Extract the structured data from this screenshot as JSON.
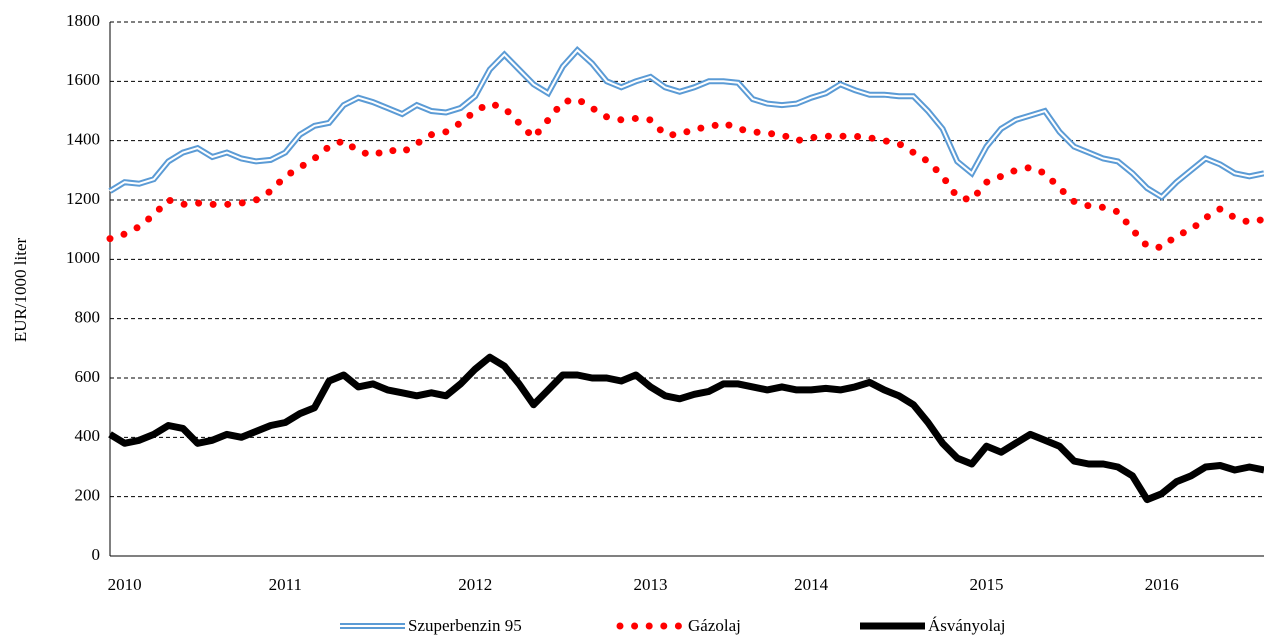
{
  "chart_data": {
    "type": "line",
    "y_label": "EUR/1000 liter",
    "categories": [
      null,
      "2010",
      null,
      null,
      null,
      null,
      null,
      null,
      null,
      null,
      null,
      null,
      "2011",
      null,
      null,
      null,
      null,
      null,
      null,
      null,
      null,
      null,
      null,
      null,
      null,
      "2012",
      null,
      null,
      null,
      null,
      null,
      null,
      null,
      null,
      null,
      null,
      null,
      "2013",
      null,
      null,
      null,
      null,
      null,
      null,
      null,
      null,
      null,
      null,
      "2014",
      null,
      null,
      null,
      null,
      null,
      null,
      null,
      null,
      null,
      null,
      null,
      "2015",
      null,
      null,
      null,
      null,
      null,
      null,
      null,
      null,
      null,
      null,
      null,
      "2016",
      null,
      null,
      null,
      null,
      null,
      null,
      null
    ],
    "series": [
      {
        "name": "Szuperbenzin 95",
        "color": "#5b9bd5",
        "style": "double",
        "values": [
          1230,
          1260,
          1255,
          1270,
          1330,
          1360,
          1375,
          1345,
          1360,
          1340,
          1330,
          1335,
          1360,
          1420,
          1450,
          1460,
          1520,
          1545,
          1530,
          1510,
          1490,
          1520,
          1500,
          1495,
          1510,
          1550,
          1640,
          1690,
          1640,
          1590,
          1560,
          1650,
          1705,
          1660,
          1600,
          1580,
          1600,
          1615,
          1580,
          1565,
          1580,
          1600,
          1600,
          1595,
          1540,
          1525,
          1520,
          1525,
          1545,
          1560,
          1590,
          1570,
          1555,
          1555,
          1550,
          1550,
          1500,
          1440,
          1330,
          1290,
          1380,
          1440,
          1470,
          1485,
          1500,
          1430,
          1380,
          1360,
          1340,
          1330,
          1290,
          1240,
          1210,
          1260,
          1300,
          1340,
          1320,
          1290,
          1280,
          1290
        ]
      },
      {
        "name": "Gázolaj",
        "color": "#ff0000",
        "style": "dotted",
        "values": [
          1070,
          1085,
          1110,
          1150,
          1200,
          1185,
          1190,
          1185,
          1185,
          1190,
          1200,
          1230,
          1280,
          1310,
          1340,
          1380,
          1400,
          1365,
          1350,
          1370,
          1360,
          1390,
          1420,
          1430,
          1460,
          1500,
          1525,
          1510,
          1460,
          1410,
          1470,
          1530,
          1540,
          1510,
          1480,
          1470,
          1475,
          1470,
          1420,
          1420,
          1440,
          1445,
          1460,
          1440,
          1430,
          1425,
          1420,
          1400,
          1410,
          1415,
          1415,
          1415,
          1410,
          1400,
          1390,
          1360,
          1330,
          1280,
          1210,
          1200,
          1260,
          1280,
          1300,
          1310,
          1290,
          1240,
          1195,
          1180,
          1175,
          1160,
          1100,
          1045,
          1040,
          1080,
          1100,
          1140,
          1170,
          1140,
          1125,
          1135
        ]
      },
      {
        "name": "Ásványolaj",
        "color": "#000000",
        "style": "thick",
        "values": [
          410,
          380,
          390,
          410,
          440,
          430,
          380,
          390,
          410,
          400,
          420,
          440,
          450,
          480,
          500,
          590,
          610,
          570,
          580,
          560,
          550,
          540,
          550,
          540,
          580,
          630,
          670,
          640,
          580,
          510,
          560,
          610,
          610,
          600,
          600,
          590,
          610,
          570,
          540,
          530,
          545,
          555,
          580,
          580,
          570,
          560,
          570,
          560,
          560,
          565,
          560,
          570,
          585,
          560,
          540,
          510,
          450,
          380,
          330,
          310,
          370,
          350,
          380,
          410,
          390,
          370,
          320,
          310,
          310,
          300,
          270,
          190,
          210,
          250,
          270,
          300,
          305,
          290,
          300,
          290
        ]
      }
    ],
    "ylim": [
      0,
      1800
    ],
    "yticks": [
      0,
      200,
      400,
      600,
      800,
      1000,
      1200,
      1400,
      1600,
      1800
    ],
    "grid": true,
    "legend": "bottom"
  }
}
